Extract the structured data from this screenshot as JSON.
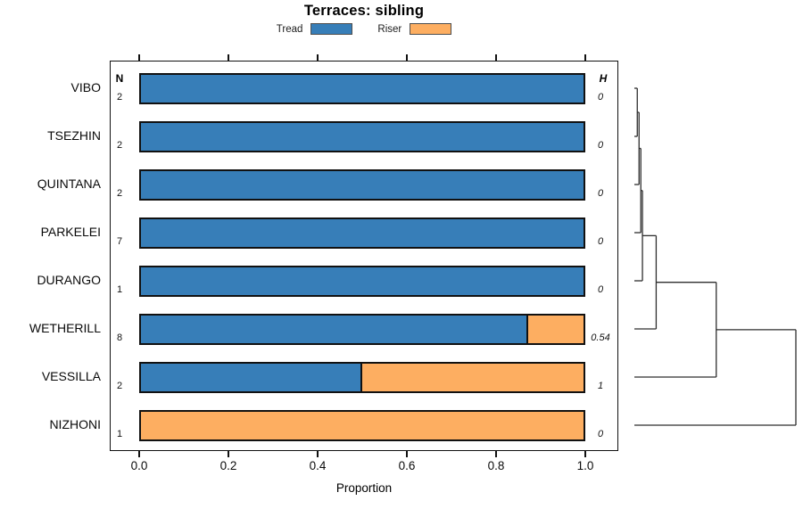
{
  "title": "Terraces: sibling",
  "legend": {
    "items": [
      {
        "label": "Tread",
        "color": "#377EB8"
      },
      {
        "label": "Riser",
        "color": "#FDAE61"
      }
    ]
  },
  "columns": {
    "n_header": "N",
    "h_header": "H"
  },
  "x_axis": {
    "label": "Proportion",
    "tick_labels": [
      "0.0",
      "0.2",
      "0.4",
      "0.6",
      "0.8",
      "1.0"
    ]
  },
  "rows": [
    {
      "label": "VIBO",
      "n": "2",
      "tread": 1.0,
      "riser": 0.0,
      "h": "0"
    },
    {
      "label": "TSEZHIN",
      "n": "2",
      "tread": 1.0,
      "riser": 0.0,
      "h": "0"
    },
    {
      "label": "QUINTANA",
      "n": "2",
      "tread": 1.0,
      "riser": 0.0,
      "h": "0"
    },
    {
      "label": "PARKELEI",
      "n": "7",
      "tread": 1.0,
      "riser": 0.0,
      "h": "0"
    },
    {
      "label": "DURANGO",
      "n": "1",
      "tread": 1.0,
      "riser": 0.0,
      "h": "0"
    },
    {
      "label": "WETHERILL",
      "n": "8",
      "tread": 0.875,
      "riser": 0.125,
      "h": "0.54"
    },
    {
      "label": "VESSILLA",
      "n": "2",
      "tread": 0.5,
      "riser": 0.5,
      "h": "1"
    },
    {
      "label": "NIZHONI",
      "n": "1",
      "tread": 0.0,
      "riser": 1.0,
      "h": "0"
    }
  ],
  "chart_data": {
    "type": "bar",
    "orientation": "horizontal",
    "stacked": true,
    "title": "Terraces: sibling",
    "categories": [
      "VIBO",
      "TSEZHIN",
      "QUINTANA",
      "PARKELEI",
      "DURANGO",
      "WETHERILL",
      "VESSILLA",
      "NIZHONI"
    ],
    "series": [
      {
        "name": "Tread",
        "color": "#377EB8",
        "values": [
          1,
          1,
          1,
          1,
          1,
          0.875,
          0.5,
          0
        ]
      },
      {
        "name": "Riser",
        "color": "#FDAE61",
        "values": [
          0,
          0,
          0,
          0,
          0,
          0.125,
          0.5,
          1
        ]
      }
    ],
    "n_counts": [
      2,
      2,
      2,
      7,
      1,
      8,
      2,
      1
    ],
    "h_values": [
      0,
      0,
      0,
      0,
      0,
      0.54,
      1,
      0
    ],
    "xlabel": "Proportion",
    "xlim": [
      0,
      1
    ],
    "xticks": [
      0.0,
      0.2,
      0.4,
      0.6,
      0.8,
      1.0
    ],
    "grid": false,
    "legend_position": "top-center",
    "dendrogram": {
      "side": "right",
      "topology": "caterpillar: ((((((((VIBO,TSEZHIN),QUINTANA),PARKELEI),DURANGO),WETHERILL),VESSILLA),NIZHONI)",
      "merge_heights_normalized": [
        0.018,
        0.029,
        0.04,
        0.05,
        0.135,
        0.507,
        1.0
      ],
      "line_color": "#2e2e2e"
    }
  }
}
